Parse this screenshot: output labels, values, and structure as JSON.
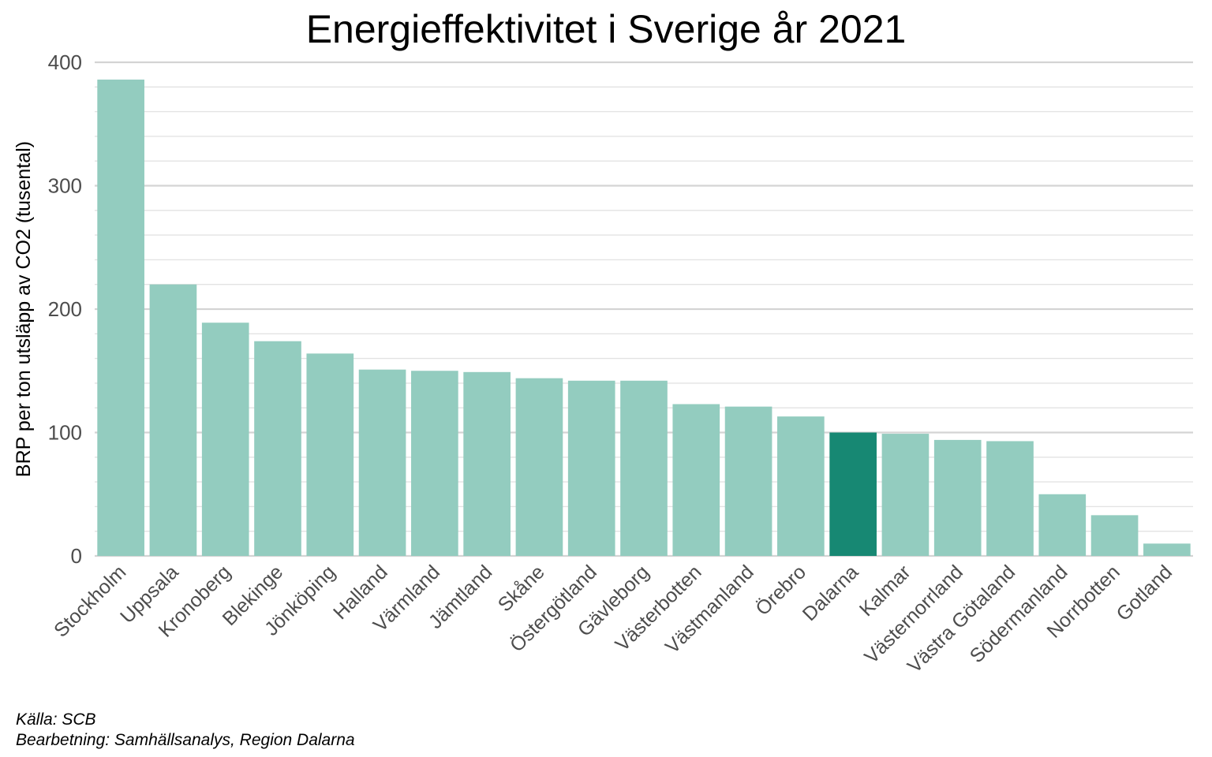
{
  "chart_data": {
    "type": "bar",
    "title": "Energieffektivitet i Sverige år 2021",
    "xlabel": "",
    "ylabel": "BRP per ton utsläpp av CO2 (tusental)",
    "ylim": [
      0,
      400
    ],
    "yticks": [
      0,
      100,
      200,
      300,
      400
    ],
    "grid": true,
    "categories": [
      "Stockholm",
      "Uppsala",
      "Kronoberg",
      "Blekinge",
      "Jönköping",
      "Halland",
      "Värmland",
      "Jämtland",
      "Skåne",
      "Östergötland",
      "Gävleborg",
      "Västerbotten",
      "Västmanland",
      "Örebro",
      "Dalarna",
      "Kalmar",
      "Västernorrland",
      "Västra Götaland",
      "Södermanland",
      "Norrbotten",
      "Gotland"
    ],
    "values": [
      386,
      220,
      189,
      174,
      164,
      151,
      150,
      149,
      144,
      142,
      142,
      123,
      121,
      113,
      100,
      99,
      94,
      93,
      50,
      33,
      10
    ],
    "highlight": "Dalarna",
    "colors": {
      "bar": "#93ccbf",
      "highlight": "#178873",
      "grid_major": "#d4d4d4",
      "grid_minor": "#e3e3e3",
      "tick_text": "#4d4d4d"
    }
  },
  "captions": {
    "source": "Källa: SCB",
    "processing": "Bearbetning: Samhällsanalys, Region Dalarna"
  }
}
